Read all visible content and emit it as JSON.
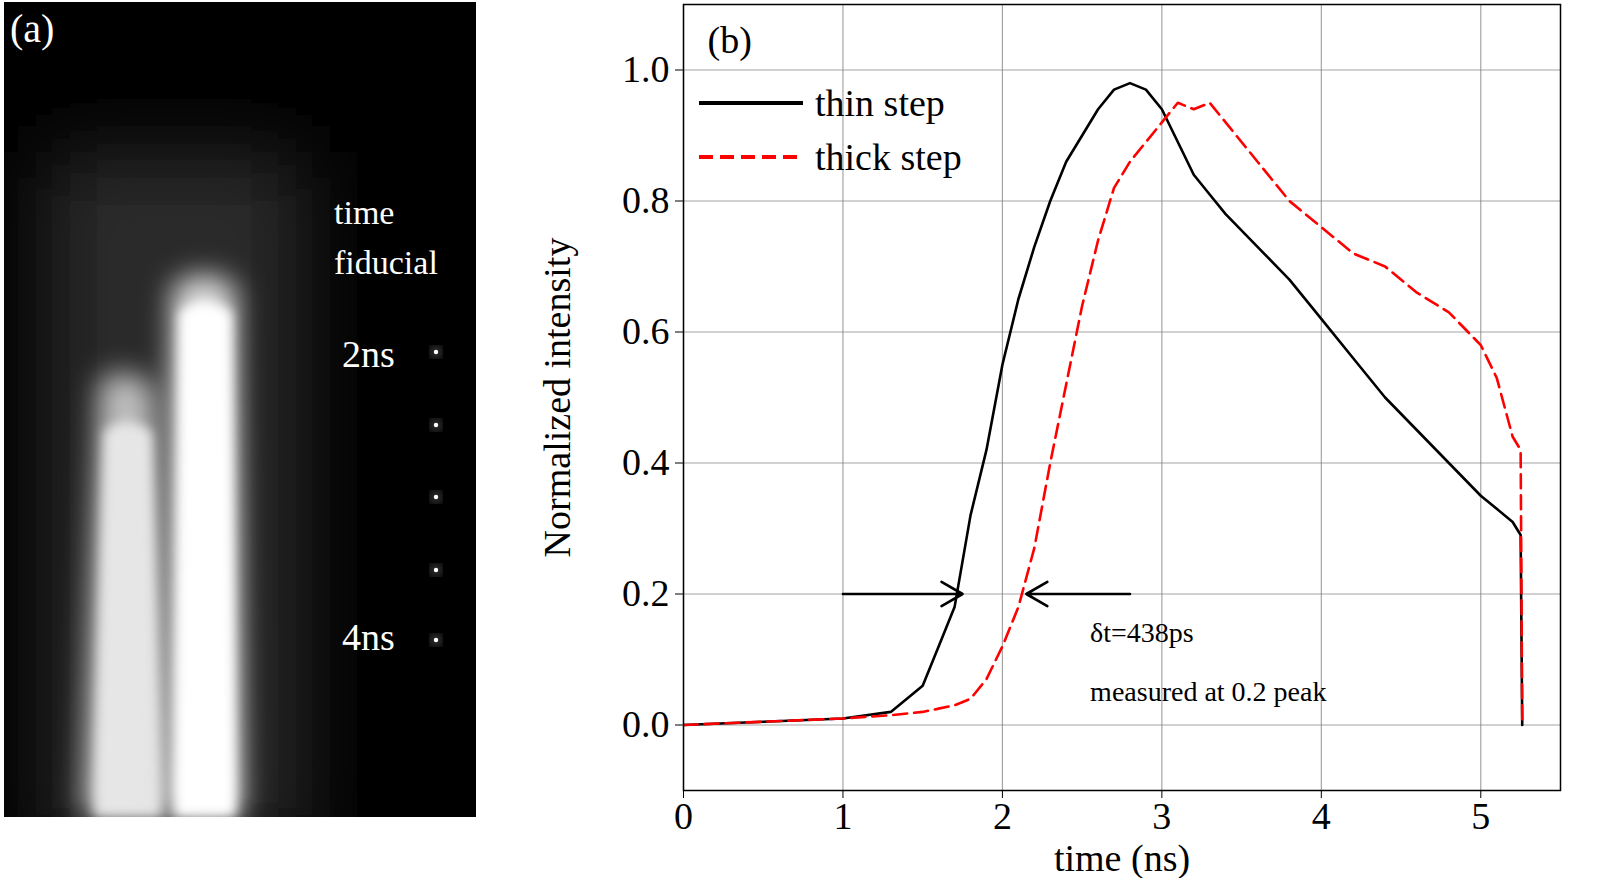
{
  "image_panel": {
    "panel_label": "(a)",
    "fiducial_title": "time fiducial",
    "fiducial_labels": [
      "2ns",
      "4ns"
    ]
  },
  "chart_data": {
    "type": "line",
    "panel_label": "(b)",
    "x_label": "time (ns)",
    "y_label": "Normalized intensity",
    "x": [
      0,
      0.5,
      1.0,
      1.3,
      1.5,
      1.6,
      1.7,
      1.8,
      1.9,
      2.0,
      2.1,
      2.2,
      2.3,
      2.4,
      2.5,
      2.6,
      2.7,
      2.8,
      2.9,
      3.0,
      3.1,
      3.2,
      3.3,
      3.4,
      3.6,
      3.8,
      4.0,
      4.2,
      4.4,
      4.6,
      4.8,
      5.0,
      5.1,
      5.2,
      5.25,
      5.26
    ],
    "series": [
      {
        "name": "thin step",
        "color": "#000000",
        "line_style": "solid",
        "values": [
          0,
          0.005,
          0.01,
          0.02,
          0.06,
          0.12,
          0.18,
          0.32,
          0.42,
          0.55,
          0.65,
          0.73,
          0.8,
          0.86,
          0.9,
          0.94,
          0.97,
          0.98,
          0.97,
          0.94,
          0.89,
          0.84,
          0.81,
          0.78,
          0.73,
          0.68,
          0.62,
          0.56,
          0.5,
          0.45,
          0.4,
          0.35,
          0.33,
          0.31,
          0.29,
          0
        ]
      },
      {
        "name": "thick step",
        "color": "#ff0000",
        "line_style": "dashed",
        "values": [
          0,
          0.005,
          0.01,
          0.015,
          0.02,
          0.025,
          0.03,
          0.04,
          0.07,
          0.12,
          0.18,
          0.27,
          0.4,
          0.52,
          0.64,
          0.74,
          0.82,
          0.86,
          0.89,
          0.92,
          0.95,
          0.94,
          0.95,
          0.92,
          0.86,
          0.8,
          0.76,
          0.72,
          0.7,
          0.66,
          0.63,
          0.58,
          0.53,
          0.44,
          0.42,
          0
        ]
      }
    ],
    "xlim": [
      0,
      5.5
    ],
    "ylim": [
      -0.1,
      1.1
    ],
    "xticks": [
      0,
      1,
      2,
      3,
      4,
      5
    ],
    "yticks": [
      {
        "value": 0,
        "label": "0.0"
      },
      0.2,
      0.4,
      0.6,
      0.8,
      {
        "value": 1,
        "label": "1.0"
      }
    ],
    "grid": true,
    "legend": "upper left",
    "annotations": [
      {
        "text": "δt=438ps",
        "x": 2.55,
        "y": 0.14
      },
      {
        "text": "measured at 0.2 peak",
        "x": 2.55,
        "y": 0.05
      }
    ],
    "arrows": [
      {
        "x1": 1.0,
        "x2": 1.75,
        "y": 0.2
      },
      {
        "x1": 2.8,
        "x2": 2.15,
        "y": 0.2
      }
    ]
  }
}
